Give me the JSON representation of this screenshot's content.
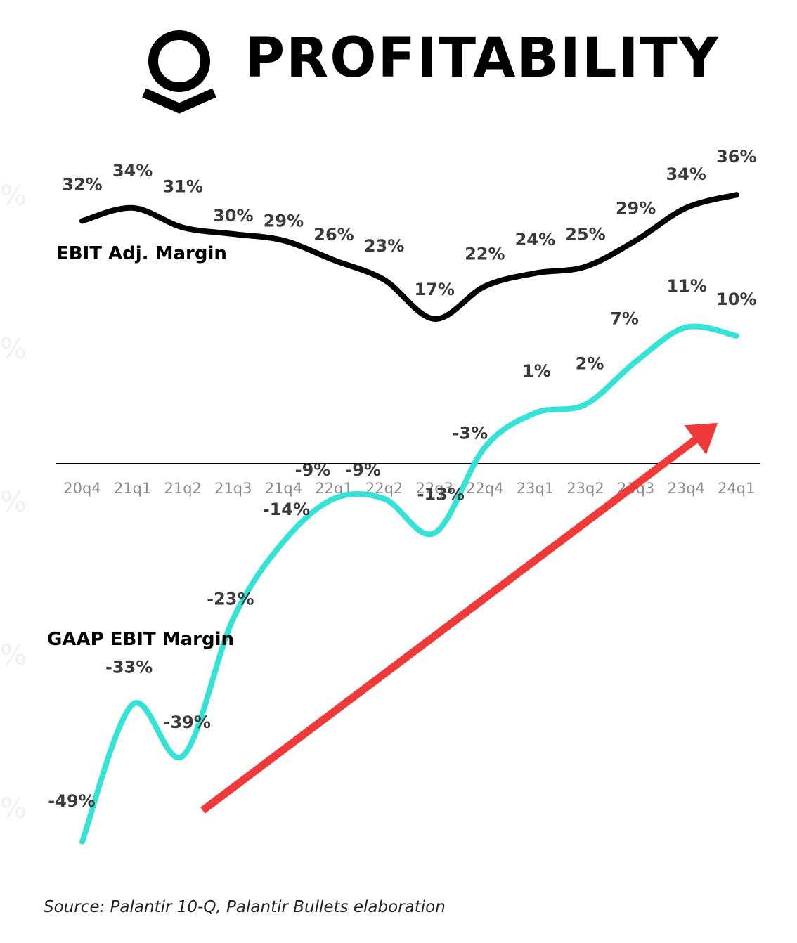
{
  "header": {
    "title": "PROFITABILITY",
    "logo_icon": "palantir-logo-icon"
  },
  "source_note": "Source: Palantir 10-Q, Palantir Bullets elaboration",
  "chart_data": {
    "type": "line",
    "categories": [
      "20q4",
      "21q1",
      "21q2",
      "21q3",
      "21q4",
      "22q1",
      "22q2",
      "22q3",
      "22q4",
      "23q1",
      "23q2",
      "23q3",
      "23q4",
      "24q1"
    ],
    "series": [
      {
        "name": "EBIT Adj. Margin",
        "values": [
          32,
          34,
          31,
          30,
          29,
          26,
          23,
          17,
          22,
          24,
          25,
          29,
          34,
          36
        ],
        "labels": [
          "32%",
          "34%",
          "31%",
          "30%",
          "29%",
          "26%",
          "23%",
          "17%",
          "22%",
          "24%",
          "25%",
          "29%",
          "34%",
          "36%"
        ],
        "color": "#000000"
      },
      {
        "name": "GAAP EBIT Margin",
        "values": [
          -49,
          -33,
          -39,
          -23,
          -14,
          -9,
          -9,
          -13,
          -3,
          1,
          2,
          7,
          11,
          10
        ],
        "labels": [
          "-49%",
          "-33%",
          "-39%",
          "-23%",
          "-14%",
          "-9%",
          "-9%",
          "-13%",
          "-3%",
          "1%",
          "2%",
          "7%",
          "11%",
          "10%"
        ],
        "color": "#35e3d6"
      }
    ],
    "annotation_arrow": {
      "from": "21q3",
      "to": "23q4",
      "color": "#f03a3a"
    },
    "zero_line": true,
    "grid": false
  }
}
